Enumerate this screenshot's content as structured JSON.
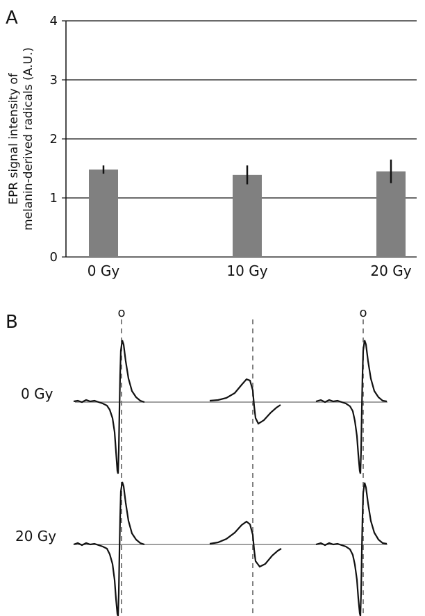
{
  "panel_a": {
    "label": "A",
    "chart_data": {
      "type": "bar",
      "categories": [
        "0 Gy",
        "10 Gy",
        "20 Gy"
      ],
      "values": [
        1.48,
        1.39,
        1.45
      ],
      "errors": [
        0.07,
        0.16,
        0.2
      ],
      "title": "",
      "xlabel": "",
      "ylabel_line1": "EPR signal intensity of",
      "ylabel_line2": "melanin-derived radicals (A.U.)",
      "ylim": [
        0,
        4
      ],
      "yticks": [
        0,
        1,
        2,
        3,
        4
      ],
      "grid": true,
      "bar_color": "#808080",
      "error_color": "#111111"
    }
  },
  "panel_b": {
    "label": "B",
    "rows": [
      {
        "label": "0 Gy"
      },
      {
        "label": "20 Gy"
      }
    ],
    "peak_marker": "o",
    "trace_color": "#111111",
    "baseline_color": "#808080",
    "guide_color": "#808080"
  }
}
